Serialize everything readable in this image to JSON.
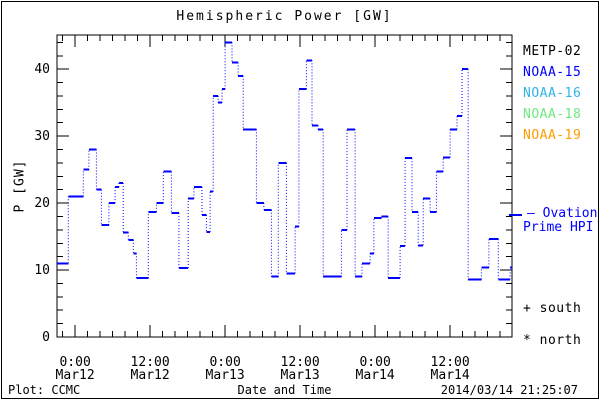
{
  "title": "Hemispheric Power [GW]",
  "colors": {
    "line": "#0000ff",
    "axis": "#000000",
    "text": "#000000",
    "hpi_label": "#0000ff"
  },
  "legend": {
    "satellites": [
      {
        "label": "METP-02",
        "color": "#000000"
      },
      {
        "label": "NOAA-15",
        "color": "#0000ff"
      },
      {
        "label": "NOAA-16",
        "color": "#2fb4e8"
      },
      {
        "label": "NOAA-18",
        "color": "#6fe87f"
      },
      {
        "label": "NOAA-19",
        "color": "#ff9c00"
      }
    ],
    "hpi_line1": "— Ovation",
    "hpi_line2": "Prime HPI",
    "south_label": "+ south",
    "north_label": "* north"
  },
  "footer": {
    "plot_credit": "Plot: CCMC",
    "timestamp": "2014/03/14 21:25:07"
  },
  "chart_data": {
    "type": "line",
    "subtype": "stepped-dotted",
    "title": "Hemispheric Power [GW]",
    "xlabel": "Date and Time",
    "ylabel": "P [GW]",
    "x_unit": "hours since 2014-03-12 00:00 UT",
    "xlim": [
      -2.9,
      69.9
    ],
    "ylim": [
      0,
      45.1
    ],
    "x_end": 69.9,
    "x_minor_step_hours": 2,
    "y_minor_step_gw": 2,
    "grid": false,
    "legend_position": "right-outside",
    "x_ticks": [
      {
        "t": 0,
        "time": "0:00",
        "date": "Mar12"
      },
      {
        "t": 12,
        "time": "12:00",
        "date": "Mar12"
      },
      {
        "t": 24,
        "time": "0:00",
        "date": "Mar13"
      },
      {
        "t": 36,
        "time": "12:00",
        "date": "Mar13"
      },
      {
        "t": 48,
        "time": "0:00",
        "date": "Mar14"
      },
      {
        "t": 60,
        "time": "12:00",
        "date": "Mar14"
      }
    ],
    "y_ticks": [
      {
        "v": 0,
        "label": "0"
      },
      {
        "v": 10,
        "label": "10"
      },
      {
        "v": 20,
        "label": "20"
      },
      {
        "v": 30,
        "label": "30"
      },
      {
        "v": 40,
        "label": "40"
      }
    ],
    "series": [
      {
        "name": "Ovation Prime HPI",
        "color": "#0000ff",
        "points": [
          [
            -2.9,
            11.0
          ],
          [
            -1.1,
            21.0
          ],
          [
            1.3,
            25.0
          ],
          [
            2.2,
            28.0
          ],
          [
            3.4,
            22.0
          ],
          [
            4.2,
            16.7
          ],
          [
            5.4,
            20.0
          ],
          [
            6.4,
            22.4
          ],
          [
            7.0,
            23.0
          ],
          [
            7.7,
            15.6
          ],
          [
            8.5,
            14.5
          ],
          [
            9.3,
            12.5
          ],
          [
            9.8,
            8.8
          ],
          [
            11.7,
            18.7
          ],
          [
            13.0,
            20.0
          ],
          [
            14.1,
            24.7
          ],
          [
            15.4,
            18.5
          ],
          [
            16.6,
            10.3
          ],
          [
            18.1,
            20.7
          ],
          [
            19.0,
            22.4
          ],
          [
            20.3,
            18.2
          ],
          [
            21.0,
            15.7
          ],
          [
            21.6,
            21.7
          ],
          [
            22.1,
            36.0
          ],
          [
            22.9,
            35.0
          ],
          [
            23.5,
            37.0
          ],
          [
            24.0,
            44.0
          ],
          [
            25.1,
            41.0
          ],
          [
            26.1,
            39.0
          ],
          [
            26.9,
            31.0
          ],
          [
            29.0,
            20.0
          ],
          [
            30.2,
            19.0
          ],
          [
            31.4,
            9.0
          ],
          [
            32.5,
            26.0
          ],
          [
            33.8,
            9.5
          ],
          [
            35.2,
            16.5
          ],
          [
            35.8,
            37.0
          ],
          [
            37.0,
            41.3
          ],
          [
            37.9,
            31.6
          ],
          [
            38.9,
            31.0
          ],
          [
            39.7,
            9.0
          ],
          [
            42.6,
            16.0
          ],
          [
            43.5,
            31.0
          ],
          [
            44.8,
            9.0
          ],
          [
            45.9,
            11.0
          ],
          [
            47.2,
            12.5
          ],
          [
            47.8,
            17.8
          ],
          [
            49.0,
            18.0
          ],
          [
            50.1,
            8.8
          ],
          [
            52.0,
            13.6
          ],
          [
            52.8,
            26.7
          ],
          [
            53.9,
            18.7
          ],
          [
            54.9,
            13.7
          ],
          [
            55.7,
            20.7
          ],
          [
            56.8,
            18.7
          ],
          [
            57.8,
            24.7
          ],
          [
            58.9,
            26.8
          ],
          [
            60.0,
            31.0
          ],
          [
            61.1,
            33.0
          ],
          [
            61.9,
            40.0
          ],
          [
            62.9,
            8.6
          ],
          [
            65.0,
            10.4
          ],
          [
            66.2,
            14.6
          ],
          [
            67.7,
            8.6
          ],
          [
            69.6,
            10.4
          ]
        ]
      }
    ]
  }
}
